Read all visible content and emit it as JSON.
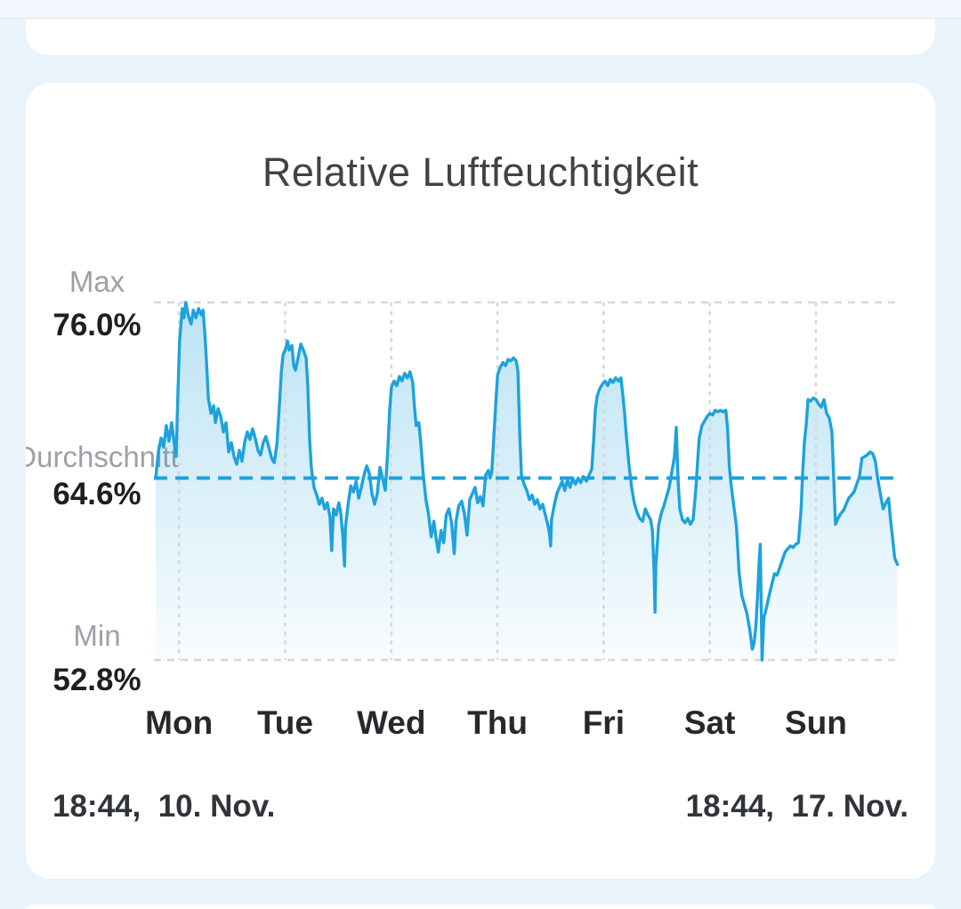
{
  "chart_data": {
    "type": "area",
    "title": "Relative Luftfeuchtigkeit",
    "unit": "%",
    "ylim": [
      52.8,
      76.0
    ],
    "grid": true,
    "legend": "none",
    "y_axis": {
      "max_label": "Max",
      "max_value_label": "76.0%",
      "max": 76.0,
      "avg_label": "Durchschnitt",
      "avg_value_label": "64.6%",
      "avg": 64.6,
      "min_label": "Min",
      "min_value_label": "52.8%",
      "min": 52.8
    },
    "x_axis": {
      "range_hours": 168,
      "day_labels": [
        "Mon",
        "Tue",
        "Wed",
        "Thu",
        "Fri",
        "Sat",
        "Sun"
      ],
      "day_gridline_hours": [
        5.27,
        29.27,
        53.27,
        77.27,
        101.27,
        125.27,
        149.27
      ],
      "start_label": "18:44,  10. Nov.",
      "end_label": "18:44,  17. Nov."
    },
    "colors": {
      "line": "#1da2dc",
      "grid": "#d6d8db",
      "fill_top": "rgba(29,162,220,0.30)",
      "fill_bottom": "rgba(29,162,220,0.03)"
    },
    "series": [
      {
        "name": "Relative Luftfeuchtigkeit (%)",
        "points": [
          [
            0,
            64.6
          ],
          [
            0.6,
            66.3
          ],
          [
            1.2,
            67.2
          ],
          [
            1.8,
            66.6
          ],
          [
            2.4,
            68
          ],
          [
            3,
            67
          ],
          [
            3.6,
            68.2
          ],
          [
            4.2,
            66.8
          ],
          [
            4.6,
            66
          ],
          [
            5,
            70
          ],
          [
            5.4,
            73.5
          ],
          [
            6,
            75.6
          ],
          [
            6.4,
            75
          ],
          [
            6.8,
            76
          ],
          [
            7.4,
            75.1
          ],
          [
            8,
            74.6
          ],
          [
            8.5,
            75.5
          ],
          [
            9.1,
            75
          ],
          [
            9.7,
            75.6
          ],
          [
            10.3,
            75.2
          ],
          [
            10.7,
            75.5
          ],
          [
            11.1,
            74
          ],
          [
            11.5,
            72
          ],
          [
            11.9,
            69.8
          ],
          [
            12.5,
            68.8
          ],
          [
            13.1,
            69.3
          ],
          [
            13.5,
            68.2
          ],
          [
            14.1,
            69.1
          ],
          [
            14.7,
            68.6
          ],
          [
            15.3,
            67.6
          ],
          [
            15.9,
            68.2
          ],
          [
            16.5,
            66.3
          ],
          [
            17.1,
            66.9
          ],
          [
            17.7,
            66
          ],
          [
            18.3,
            65.5
          ],
          [
            18.9,
            66.4
          ],
          [
            19.5,
            65.7
          ],
          [
            20.1,
            66.9
          ],
          [
            20.7,
            67.6
          ],
          [
            21.3,
            67.1
          ],
          [
            21.9,
            67.8
          ],
          [
            22.5,
            67.2
          ],
          [
            23.1,
            66.4
          ],
          [
            23.7,
            66.1
          ],
          [
            24.3,
            66.9
          ],
          [
            24.9,
            67.3
          ],
          [
            25.6,
            66.6
          ],
          [
            26.2,
            65.9
          ],
          [
            26.8,
            65.6
          ],
          [
            27.4,
            66.8
          ],
          [
            28,
            69.5
          ],
          [
            28.4,
            71.5
          ],
          [
            28.8,
            72.6
          ],
          [
            29.4,
            73
          ],
          [
            29.8,
            73.5
          ],
          [
            30.2,
            72.9
          ],
          [
            30.8,
            73.2
          ],
          [
            31.2,
            71.9
          ],
          [
            31.6,
            71.6
          ],
          [
            32.2,
            72.4
          ],
          [
            32.8,
            73.3
          ],
          [
            33.4,
            72.9
          ],
          [
            34,
            72.4
          ],
          [
            34.4,
            70.5
          ],
          [
            34.8,
            67
          ],
          [
            35.2,
            65.2
          ],
          [
            35.8,
            64
          ],
          [
            36.4,
            63.5
          ],
          [
            37,
            62.9
          ],
          [
            37.6,
            63.3
          ],
          [
            38.2,
            62.6
          ],
          [
            38.8,
            63
          ],
          [
            39.4,
            62.1
          ],
          [
            39.8,
            59.9
          ],
          [
            40.2,
            62.6
          ],
          [
            40.8,
            62.2
          ],
          [
            41.4,
            63
          ],
          [
            41.8,
            62.4
          ],
          [
            42.3,
            60.9
          ],
          [
            42.7,
            58.9
          ],
          [
            42.9,
            61.4
          ],
          [
            43.5,
            62.9
          ],
          [
            44.1,
            64.1
          ],
          [
            44.7,
            63.7
          ],
          [
            45.3,
            64.4
          ],
          [
            45.9,
            63.3
          ],
          [
            46.5,
            64
          ],
          [
            47.1,
            64.8
          ],
          [
            47.7,
            65.4
          ],
          [
            48.3,
            64.9
          ],
          [
            48.9,
            63.6
          ],
          [
            49.5,
            62.9
          ],
          [
            50.1,
            63.6
          ],
          [
            50.7,
            65.3
          ],
          [
            51.3,
            64.6
          ],
          [
            51.9,
            63.8
          ],
          [
            52.5,
            66.5
          ],
          [
            52.9,
            69
          ],
          [
            53.3,
            70.5
          ],
          [
            53.9,
            70.9
          ],
          [
            54.5,
            70.6
          ],
          [
            55.1,
            71.2
          ],
          [
            55.7,
            70.9
          ],
          [
            56.3,
            71.4
          ],
          [
            56.9,
            71.1
          ],
          [
            57.5,
            71.5
          ],
          [
            58.1,
            70.8
          ],
          [
            58.5,
            69.2
          ],
          [
            58.9,
            68
          ],
          [
            59.5,
            68.2
          ],
          [
            59.9,
            67
          ],
          [
            60.5,
            64.8
          ],
          [
            61.1,
            63.2
          ],
          [
            61.7,
            62.2
          ],
          [
            62.3,
            60.8
          ],
          [
            62.9,
            61.8
          ],
          [
            63.5,
            60.5
          ],
          [
            63.9,
            59.8
          ],
          [
            64.5,
            61.2
          ],
          [
            65.1,
            60.4
          ],
          [
            65.7,
            62.2
          ],
          [
            66.3,
            62.6
          ],
          [
            66.9,
            61.7
          ],
          [
            67.5,
            59.7
          ],
          [
            67.9,
            61.8
          ],
          [
            68.5,
            62.8
          ],
          [
            69.2,
            63.1
          ],
          [
            69.8,
            62.3
          ],
          [
            70.4,
            60.9
          ],
          [
            71,
            63.2
          ],
          [
            71.6,
            63.6
          ],
          [
            72.2,
            64
          ],
          [
            72.8,
            63
          ],
          [
            73.4,
            63.4
          ],
          [
            74,
            62.8
          ],
          [
            74.6,
            64.8
          ],
          [
            75.2,
            65.1
          ],
          [
            75.6,
            64.6
          ],
          [
            76,
            65
          ],
          [
            76.4,
            67
          ],
          [
            76.9,
            69.5
          ],
          [
            77.3,
            71.3
          ],
          [
            77.9,
            71.8
          ],
          [
            78.5,
            72.1
          ],
          [
            79.1,
            71.9
          ],
          [
            79.7,
            72.3
          ],
          [
            80.3,
            72.2
          ],
          [
            80.9,
            72.4
          ],
          [
            81.5,
            72.2
          ],
          [
            81.9,
            71.5
          ],
          [
            82.3,
            67.5
          ],
          [
            82.7,
            64.8
          ],
          [
            83.3,
            64.2
          ],
          [
            83.9,
            63.8
          ],
          [
            84.5,
            63.2
          ],
          [
            85.1,
            63.5
          ],
          [
            85.7,
            62.9
          ],
          [
            86.3,
            63.2
          ],
          [
            86.9,
            62.6
          ],
          [
            87.5,
            62.9
          ],
          [
            88.1,
            62.2
          ],
          [
            88.7,
            61.5
          ],
          [
            89.1,
            60.9
          ],
          [
            89.3,
            60.2
          ],
          [
            89.5,
            61.9
          ],
          [
            90.1,
            62.8
          ],
          [
            90.7,
            63.6
          ],
          [
            91.3,
            64
          ],
          [
            91.9,
            64.4
          ],
          [
            92.5,
            63.8
          ],
          [
            93.1,
            64.5
          ],
          [
            93.7,
            64
          ],
          [
            94.3,
            64.6
          ],
          [
            94.9,
            64.2
          ],
          [
            95.5,
            64.6
          ],
          [
            96.1,
            64.3
          ],
          [
            96.7,
            64.7
          ],
          [
            97.4,
            64.4
          ],
          [
            98,
            64.8
          ],
          [
            98.6,
            65.2
          ],
          [
            99,
            67
          ],
          [
            99.4,
            69
          ],
          [
            99.8,
            69.9
          ],
          [
            100.4,
            70.4
          ],
          [
            101,
            70.7
          ],
          [
            101.6,
            70.9
          ],
          [
            102.2,
            70.6
          ],
          [
            102.8,
            71
          ],
          [
            103.4,
            70.8
          ],
          [
            104,
            71.1
          ],
          [
            104.6,
            70.9
          ],
          [
            105.2,
            71.1
          ],
          [
            105.6,
            70
          ],
          [
            106,
            68.9
          ],
          [
            106.4,
            67.4
          ],
          [
            107,
            65.5
          ],
          [
            107.6,
            64
          ],
          [
            108.2,
            63
          ],
          [
            108.8,
            62.4
          ],
          [
            109.4,
            62
          ],
          [
            110.1,
            61.8
          ],
          [
            110.7,
            62.6
          ],
          [
            111.3,
            62.2
          ],
          [
            111.9,
            61.9
          ],
          [
            112.3,
            61.2
          ],
          [
            112.7,
            58.5
          ],
          [
            112.9,
            55.9
          ],
          [
            113.1,
            59
          ],
          [
            113.7,
            61.5
          ],
          [
            114.3,
            62.3
          ],
          [
            114.9,
            62.8
          ],
          [
            115.5,
            63.4
          ],
          [
            116.1,
            64
          ],
          [
            116.7,
            65
          ],
          [
            117.3,
            66
          ],
          [
            117.7,
            67.9
          ],
          [
            118.1,
            64.5
          ],
          [
            118.5,
            62.6
          ],
          [
            119.1,
            61.9
          ],
          [
            119.7,
            61.7
          ],
          [
            120.3,
            62
          ],
          [
            120.9,
            61.6
          ],
          [
            121.5,
            61.9
          ],
          [
            122.1,
            63.8
          ],
          [
            122.5,
            65.6
          ],
          [
            122.9,
            67.2
          ],
          [
            123.5,
            68
          ],
          [
            124.1,
            68.3
          ],
          [
            124.7,
            68.6
          ],
          [
            125.3,
            68.8
          ],
          [
            125.9,
            68.7
          ],
          [
            126.5,
            69
          ],
          [
            127.1,
            68.9
          ],
          [
            127.7,
            69
          ],
          [
            128.3,
            68.9
          ],
          [
            128.9,
            69
          ],
          [
            129.3,
            67.8
          ],
          [
            129.7,
            65.4
          ],
          [
            130.1,
            64.2
          ],
          [
            130.7,
            62.8
          ],
          [
            131.3,
            61.5
          ],
          [
            131.9,
            58.5
          ],
          [
            132.5,
            57
          ],
          [
            133.1,
            56.4
          ],
          [
            133.7,
            55.8
          ],
          [
            134.3,
            54.8
          ],
          [
            134.9,
            53.5
          ],
          [
            135.3,
            53.9
          ],
          [
            135.7,
            55
          ],
          [
            136.1,
            57
          ],
          [
            136.5,
            59.5
          ],
          [
            136.7,
            60.3
          ],
          [
            137.1,
            52.8
          ],
          [
            137.5,
            55.5
          ],
          [
            138.1,
            56.2
          ],
          [
            138.7,
            57
          ],
          [
            139.3,
            57.7
          ],
          [
            139.9,
            58.4
          ],
          [
            140.5,
            58.3
          ],
          [
            141.1,
            58.8
          ],
          [
            141.7,
            59.3
          ],
          [
            142.3,
            59.8
          ],
          [
            142.9,
            60
          ],
          [
            143.5,
            60.2
          ],
          [
            144.1,
            60.1
          ],
          [
            144.7,
            60.3
          ],
          [
            145.3,
            60.4
          ],
          [
            145.9,
            62.5
          ],
          [
            146.3,
            65
          ],
          [
            146.7,
            67
          ],
          [
            147.1,
            68.1
          ],
          [
            147.5,
            69.7
          ],
          [
            148.1,
            69.6
          ],
          [
            148.7,
            69.8
          ],
          [
            149.3,
            69.7
          ],
          [
            149.9,
            69.4
          ],
          [
            150.5,
            69.2
          ],
          [
            151.1,
            69.7
          ],
          [
            151.7,
            68.8
          ],
          [
            152.3,
            68.5
          ],
          [
            152.9,
            67.6
          ],
          [
            153.3,
            64.7
          ],
          [
            153.7,
            61.6
          ],
          [
            154.3,
            62
          ],
          [
            154.9,
            62.3
          ],
          [
            155.5,
            62.5
          ],
          [
            156.1,
            62.9
          ],
          [
            156.7,
            63.3
          ],
          [
            157.3,
            63.5
          ],
          [
            157.9,
            63.7
          ],
          [
            158.5,
            64.2
          ],
          [
            159.1,
            64.7
          ],
          [
            159.7,
            65.9
          ],
          [
            160.3,
            66
          ],
          [
            160.9,
            66.1
          ],
          [
            161.5,
            66.3
          ],
          [
            162.1,
            66.2
          ],
          [
            162.7,
            65.7
          ],
          [
            163.3,
            64.5
          ],
          [
            163.9,
            63.5
          ],
          [
            164.5,
            62.6
          ],
          [
            165.1,
            63
          ],
          [
            165.7,
            63.3
          ],
          [
            166.1,
            62
          ],
          [
            166.7,
            60.5
          ],
          [
            167.1,
            59.4
          ],
          [
            167.7,
            59
          ]
        ]
      }
    ]
  }
}
